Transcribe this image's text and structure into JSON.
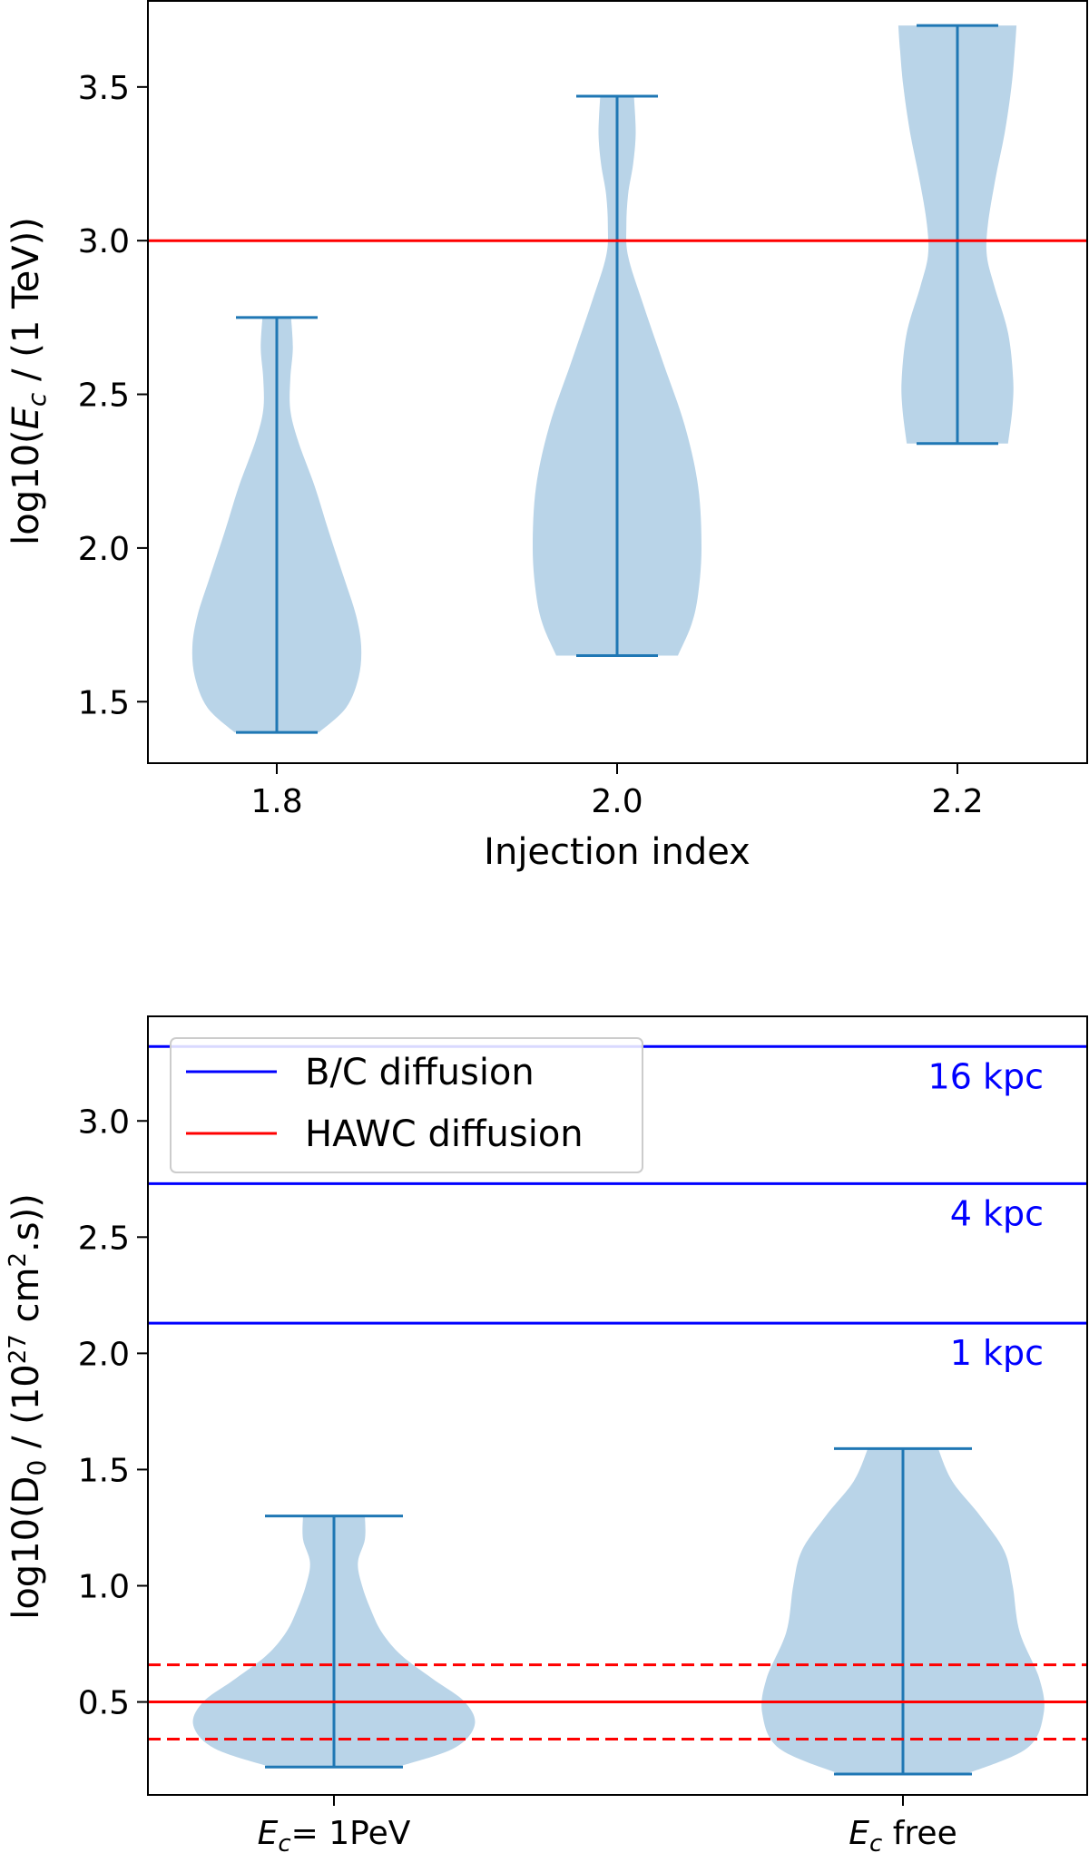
{
  "chart_data": [
    {
      "type": "violin",
      "xlabel": "Injection index",
      "ylabel": "log10(E_c / (1 TeV))",
      "ylabel_parts": {
        "pre": "log10(",
        "sym": "E",
        "sub": "c",
        "post": " / (1 TeV))"
      },
      "ylim": [
        1.3,
        3.78
      ],
      "yticks": [
        "1.5",
        "2.0",
        "2.5",
        "3.0",
        "3.5"
      ],
      "categories": [
        "1.8",
        "2.0",
        "2.2"
      ],
      "violins": [
        {
          "label": "1.8",
          "min": 1.4,
          "max": 2.75,
          "density": [
            [
              1.4,
              0.5
            ],
            [
              1.48,
              0.82
            ],
            [
              1.58,
              0.97
            ],
            [
              1.68,
              1.0
            ],
            [
              1.78,
              0.94
            ],
            [
              1.9,
              0.8
            ],
            [
              2.05,
              0.62
            ],
            [
              2.2,
              0.45
            ],
            [
              2.35,
              0.25
            ],
            [
              2.45,
              0.16
            ],
            [
              2.55,
              0.16
            ],
            [
              2.65,
              0.19
            ],
            [
              2.75,
              0.17
            ]
          ]
        },
        {
          "label": "2.0",
          "min": 1.65,
          "max": 3.47,
          "density": [
            [
              1.65,
              0.72
            ],
            [
              1.75,
              0.88
            ],
            [
              1.85,
              0.96
            ],
            [
              2.0,
              1.0
            ],
            [
              2.2,
              0.96
            ],
            [
              2.4,
              0.8
            ],
            [
              2.6,
              0.55
            ],
            [
              2.8,
              0.3
            ],
            [
              2.95,
              0.13
            ],
            [
              3.05,
              0.11
            ],
            [
              3.15,
              0.13
            ],
            [
              3.25,
              0.19
            ],
            [
              3.35,
              0.22
            ],
            [
              3.47,
              0.2
            ]
          ]
        },
        {
          "label": "2.2",
          "min": 2.34,
          "max": 3.7,
          "density": [
            [
              2.34,
              0.6
            ],
            [
              2.45,
              0.65
            ],
            [
              2.55,
              0.66
            ],
            [
              2.7,
              0.6
            ],
            [
              2.85,
              0.44
            ],
            [
              2.95,
              0.35
            ],
            [
              3.05,
              0.36
            ],
            [
              3.2,
              0.45
            ],
            [
              3.35,
              0.56
            ],
            [
              3.5,
              0.64
            ],
            [
              3.62,
              0.68
            ],
            [
              3.7,
              0.7
            ]
          ]
        }
      ],
      "lines": [
        {
          "y": 3.0,
          "color": "#ff0000",
          "style": "solid"
        }
      ]
    },
    {
      "type": "violin",
      "ylabel": "log10(D_0 / (10^27 cm^2.s))",
      "ylabel_parts": {
        "pre": "log10(D",
        "sub": "0",
        "mid": " / (10",
        "sup1": "27",
        "mid2": " cm",
        "sup2": "2",
        "post": ".s))"
      },
      "ylim": [
        0.1,
        3.45
      ],
      "yticks": [
        "0.5",
        "1.0",
        "1.5",
        "2.0",
        "2.5",
        "3.0"
      ],
      "categories": [
        {
          "sym": "E",
          "sub": "c",
          "rest": "= 1PeV"
        },
        {
          "sym": "E",
          "sub": "c",
          "rest": " free"
        }
      ],
      "violins": [
        {
          "label": "E_c = 1PeV",
          "min": 0.22,
          "max": 1.3,
          "density": [
            [
              0.22,
              0.45
            ],
            [
              0.3,
              0.85
            ],
            [
              0.4,
              1.0
            ],
            [
              0.5,
              0.93
            ],
            [
              0.6,
              0.7
            ],
            [
              0.7,
              0.48
            ],
            [
              0.8,
              0.34
            ],
            [
              0.9,
              0.26
            ],
            [
              1.0,
              0.2
            ],
            [
              1.1,
              0.17
            ],
            [
              1.2,
              0.22
            ],
            [
              1.3,
              0.22
            ]
          ]
        },
        {
          "label": "E_c free",
          "min": 0.19,
          "max": 1.59,
          "density": [
            [
              0.19,
              0.45
            ],
            [
              0.3,
              0.88
            ],
            [
              0.45,
              1.0
            ],
            [
              0.6,
              0.97
            ],
            [
              0.8,
              0.83
            ],
            [
              1.0,
              0.78
            ],
            [
              1.15,
              0.72
            ],
            [
              1.3,
              0.55
            ],
            [
              1.45,
              0.35
            ],
            [
              1.59,
              0.25
            ]
          ]
        }
      ],
      "lines": [
        {
          "y": 0.5,
          "color": "#ff0000",
          "style": "solid"
        },
        {
          "y": 0.66,
          "color": "#ff0000",
          "style": "dashed"
        },
        {
          "y": 0.34,
          "color": "#ff0000",
          "style": "dashed"
        },
        {
          "y": 3.32,
          "color": "#0000ff",
          "style": "solid",
          "annotation": "16 kpc"
        },
        {
          "y": 2.73,
          "color": "#0000ff",
          "style": "solid",
          "annotation": "4 kpc"
        },
        {
          "y": 2.13,
          "color": "#0000ff",
          "style": "solid",
          "annotation": "1 kpc"
        }
      ],
      "legend": {
        "position": "top-left",
        "entries": [
          {
            "label": "B/C diffusion",
            "color": "#0000ff"
          },
          {
            "label": "HAWC diffusion",
            "color": "#ff0000"
          }
        ]
      }
    }
  ],
  "colors": {
    "violin_fill": "#b9d4e8",
    "violin_stroke": "#1f77b4",
    "red": "#ff0000",
    "blue": "#0000ff"
  }
}
